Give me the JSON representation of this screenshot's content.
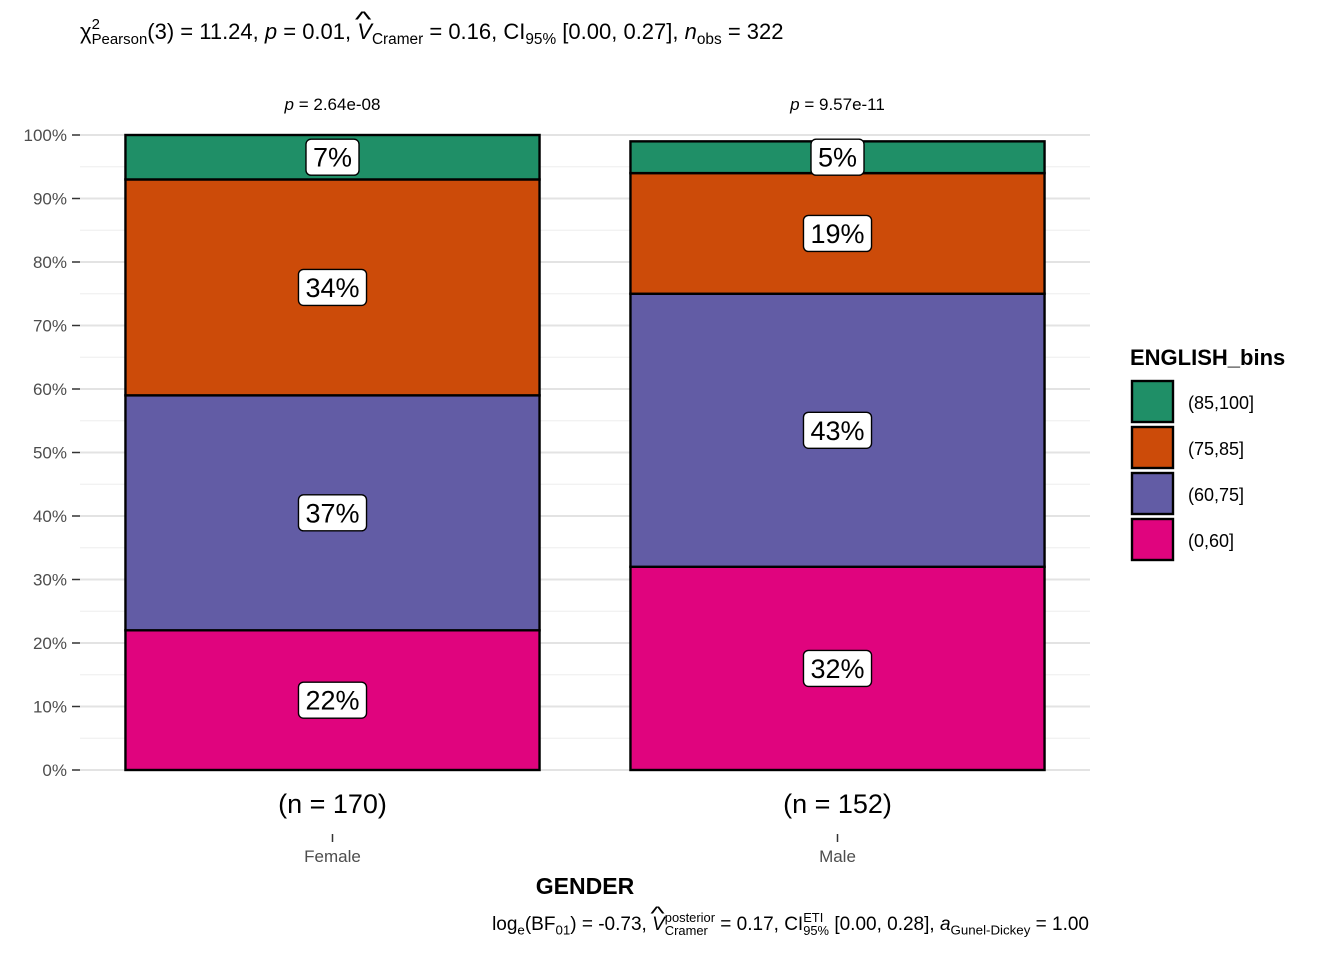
{
  "subtitle": {
    "chi_label": "Pearson",
    "chi_text": "(3) = 11.24, ",
    "p_text": " = 0.01, ",
    "v_label": "Cramer",
    "v_text": " = 0.16, CI",
    "ci_label": "95%",
    "ci_text": " [0.00, 0.27], ",
    "n_label": "obs",
    "n_text": " = 322"
  },
  "caption": {
    "bf_text": "log",
    "bf_sub": "e",
    "bf_arg": "(BF",
    "bf_arg_sub": "01",
    "bf_val": ") = -0.73, ",
    "v_sup": "posterior",
    "v_sub": "Cramer",
    "v_val": " = 0.17, CI",
    "ci_sup": "ETI",
    "ci_sub": "95%",
    "ci_val": " [0.00, 0.28], ",
    "a_sub": "Gunel-Dickey",
    "a_val": " = 1.00"
  },
  "chart_data": {
    "type": "bar",
    "stacked": true,
    "percent": true,
    "categories": [
      "Female",
      "Male"
    ],
    "category_counts": [
      "(n = 170)",
      "(n = 152)"
    ],
    "category_pvalues": [
      "2.64e-08",
      "9.57e-11"
    ],
    "series": [
      {
        "name": "(0,60]",
        "color": "#E7298A",
        "fill": "#E0047E",
        "values": [
          22,
          32
        ],
        "labels": [
          "22%",
          "32%"
        ]
      },
      {
        "name": "(60,75]",
        "color": "#7570B3",
        "fill": "#625CA5",
        "values": [
          37,
          43
        ],
        "labels": [
          "37%",
          "43%"
        ]
      },
      {
        "name": "(75,85]",
        "color": "#D95F02",
        "fill": "#CC4B09",
        "values": [
          34,
          19
        ],
        "labels": [
          "34%",
          "19%"
        ]
      },
      {
        "name": "(85,100]",
        "color": "#1B9E77",
        "fill": "#1F8F67",
        "values": [
          7,
          5
        ],
        "labels": [
          "7%",
          "5%"
        ]
      }
    ],
    "xlabel": "GENDER",
    "ylabel": "",
    "ylim": [
      0,
      100
    ],
    "yticks": [
      "0%",
      "10%",
      "20%",
      "30%",
      "40%",
      "50%",
      "60%",
      "70%",
      "80%",
      "90%",
      "100%"
    ],
    "legend": {
      "title": "ENGLISH_bins",
      "position": "right",
      "order": [
        "(85,100]",
        "(75,85]",
        "(60,75]",
        "(0,60]"
      ]
    },
    "grid": true
  }
}
